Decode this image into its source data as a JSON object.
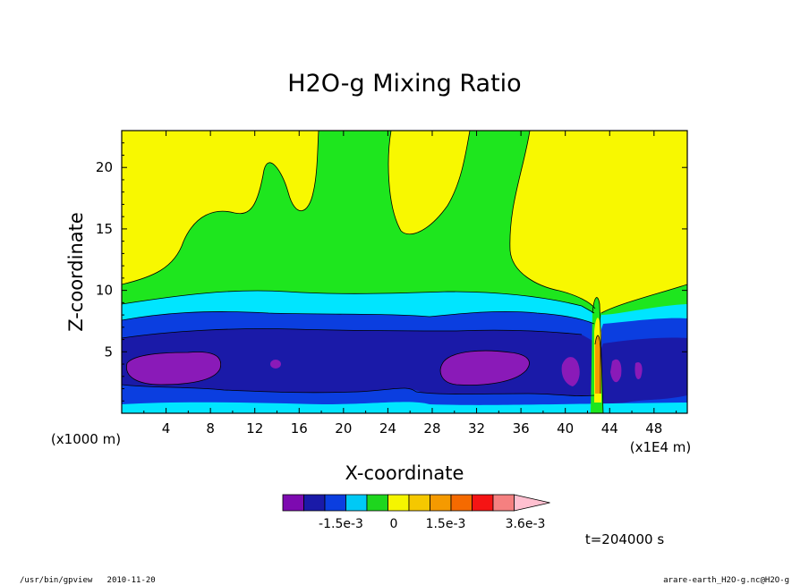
{
  "chart_data": {
    "type": "heatmap",
    "title": "H2O-g Mixing Ratio",
    "xlabel": "X-coordinate",
    "ylabel": "Z-coordinate",
    "x_units_label": "(x1E4 m)",
    "z_units_label": "(x1000 m)",
    "xlim": [
      0,
      51
    ],
    "ylim": [
      0,
      23
    ],
    "x_ticks": [
      "4",
      "8",
      "12",
      "16",
      "20",
      "24",
      "28",
      "32",
      "36",
      "40",
      "44",
      "48"
    ],
    "y_ticks": [
      "5",
      "10",
      "15",
      "20"
    ],
    "contour_levels_shown": [
      "-1.5e-3",
      "0",
      "1.5e-3",
      "3.6e-3"
    ],
    "colorbar_colors": [
      "#7d0ab0",
      "#1a1aa8",
      "#0b3ee0",
      "#00c9f5",
      "#1ed61e",
      "#f5f500",
      "#f5c800",
      "#f59a00",
      "#f56a00",
      "#f51414",
      "#f58080",
      "#ffc0d0"
    ],
    "field_colors": {
      "very_low": "#8a1ab8",
      "low": "#1a1aa8",
      "mid_low": "#0b3ee0",
      "mid": "#00e5ff",
      "mid_high": "#1ee61e",
      "high": "#f8f800",
      "peak": "#f59a00"
    },
    "time_label": "t=204000 s"
  },
  "footer": {
    "left": "/usr/bin/gpview   2010-11-20",
    "right": "arare-earth_H2O-g.nc@H2O-g"
  }
}
